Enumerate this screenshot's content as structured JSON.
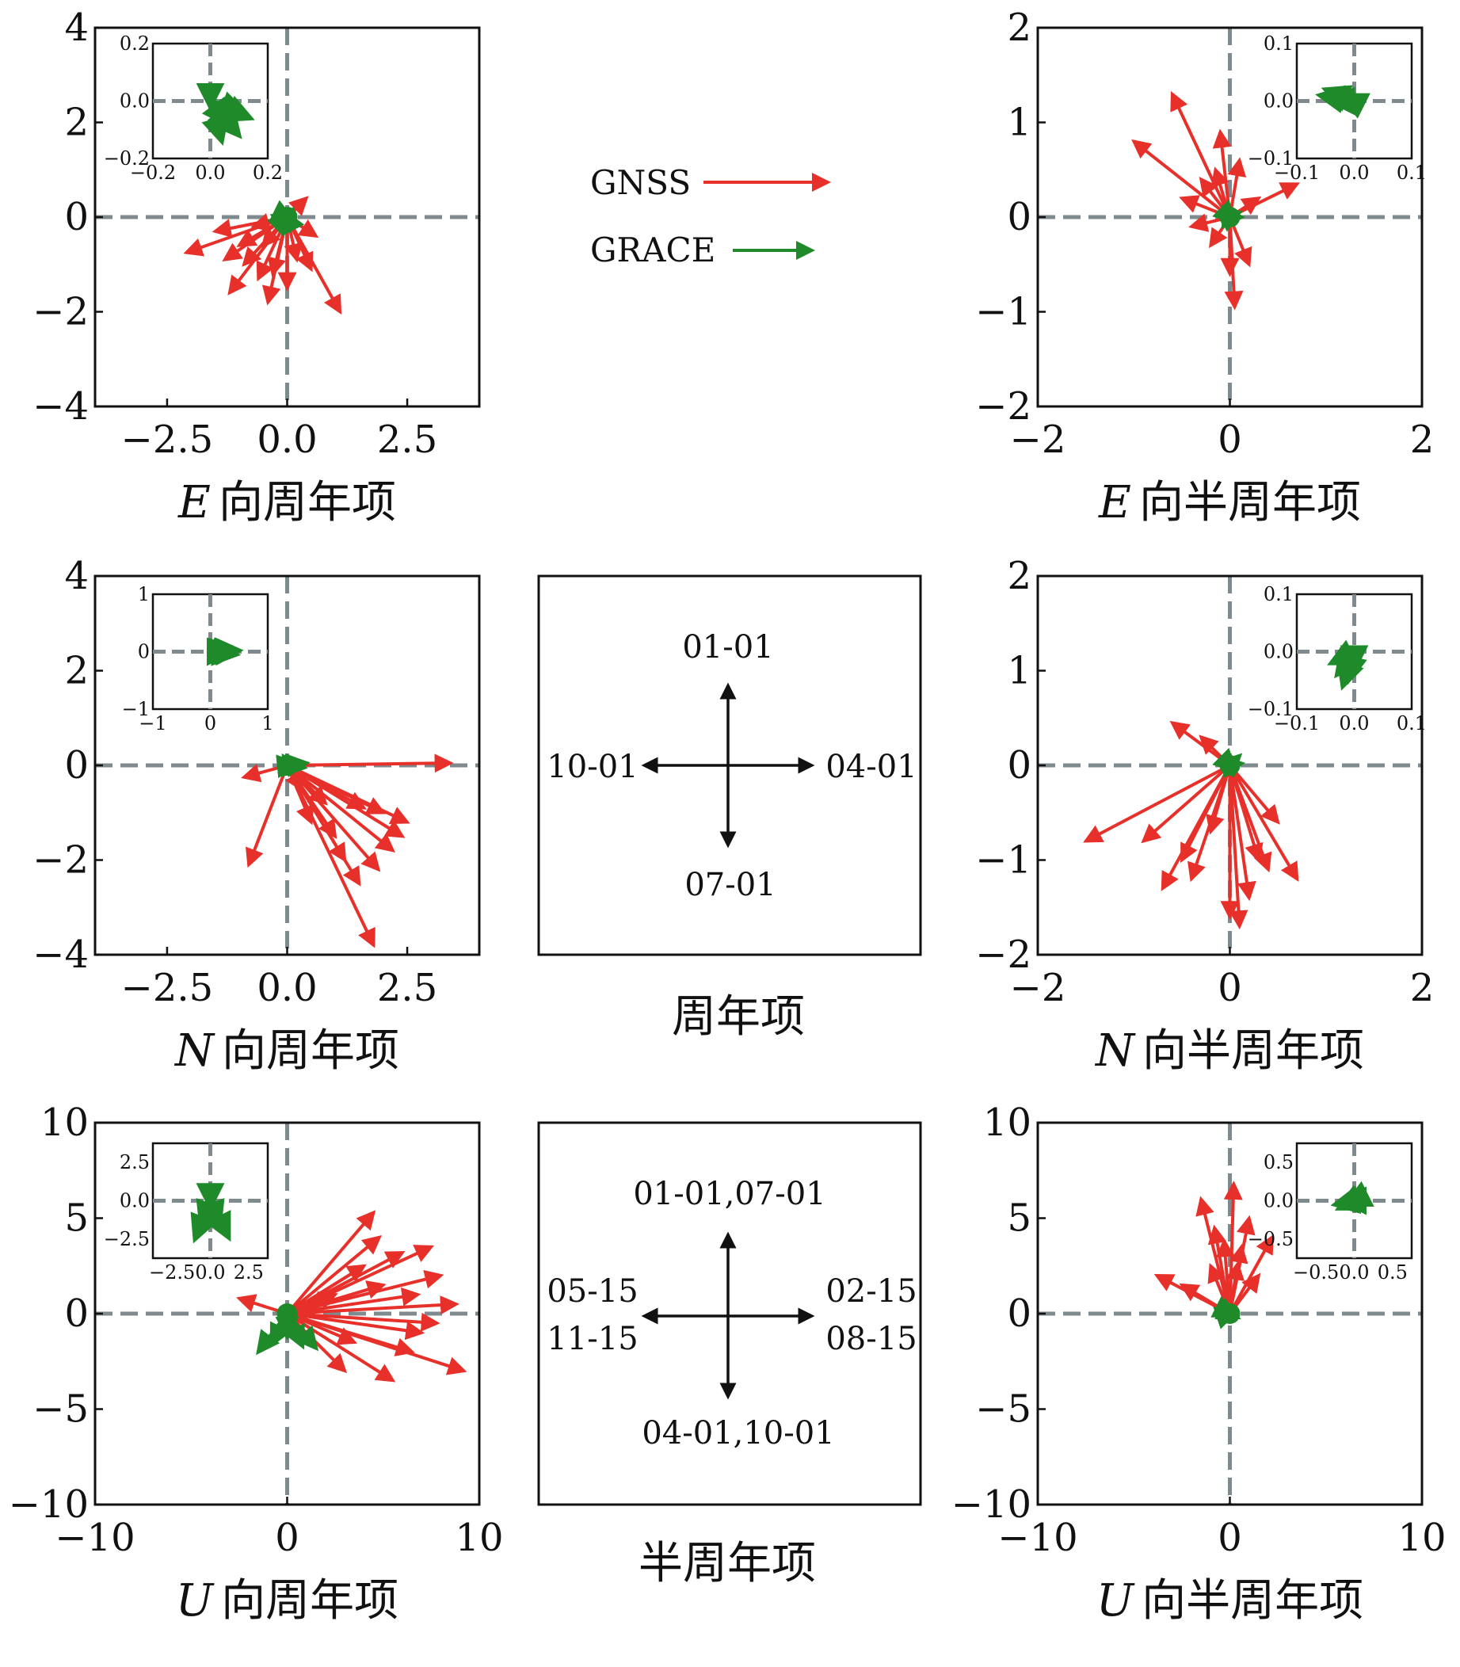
{
  "legend": {
    "gnss_label": "GNSS",
    "grace_label": "GRACE",
    "gnss_color": "#e8302a",
    "grace_color": "#1e8a2a"
  },
  "colors": {
    "gnss": "#e8302a",
    "grace": "#1e8a2a",
    "axes": "#111111",
    "zero_line": "#7f8a8f"
  },
  "annual_key": {
    "caption": "周年项",
    "top": "01-01",
    "right": "04-01",
    "bottom": "07-01",
    "left": "10-01"
  },
  "semiannual_key": {
    "caption": "半周年项",
    "top": "01-01,07-01",
    "right_1": "02-15",
    "right_2": "08-15",
    "bottom": "04-01,10-01",
    "left_1": "05-15",
    "left_2": "11-15"
  },
  "chart_data": [
    {
      "id": "E-annual",
      "type": "scatter",
      "subtype": "phasor-arrows",
      "title_italic": "E",
      "title_rest": "向周年项",
      "xlim": [
        -4,
        4
      ],
      "ylim": [
        -4,
        4
      ],
      "xticks": [
        -2.5,
        0.0,
        2.5
      ],
      "xtick_labels": [
        "−2.5",
        "0.0",
        "2.5"
      ],
      "yticks": [
        -4,
        -2,
        0,
        2,
        4
      ],
      "ytick_labels": [
        "−4",
        "−2",
        "0",
        "2",
        "4"
      ],
      "grid": false,
      "zero_lines": true,
      "gnss_arrows": [
        [
          -2.1,
          -0.75
        ],
        [
          -1.2,
          -1.6
        ],
        [
          -0.4,
          -1.8
        ],
        [
          1.1,
          -2.0
        ],
        [
          -0.9,
          -1.0
        ],
        [
          -1.5,
          -0.3
        ],
        [
          -0.5,
          -0.6
        ],
        [
          0.4,
          0.4
        ],
        [
          0.6,
          -0.4
        ],
        [
          -0.3,
          -1.2
        ],
        [
          0.2,
          -0.9
        ],
        [
          -0.7,
          -0.2
        ],
        [
          -1.0,
          -0.6
        ],
        [
          0.5,
          -1.1
        ],
        [
          -0.2,
          0.1
        ],
        [
          -1.3,
          -0.9
        ],
        [
          0.0,
          -1.5
        ],
        [
          -0.6,
          -1.3
        ]
      ],
      "grace_arrows": [
        [
          0.1,
          0.15
        ],
        [
          0.05,
          0.05
        ],
        [
          -0.05,
          0.1
        ],
        [
          0.1,
          -0.05
        ],
        [
          0.12,
          0.08
        ]
      ],
      "inset": {
        "xlim": [
          -0.2,
          0.2
        ],
        "ylim": [
          -0.2,
          0.2
        ],
        "xtick_labels": [
          "−0.2",
          "0.0",
          "0.2"
        ],
        "ytick_labels": [
          "−0.2",
          "0.0",
          "0.2"
        ],
        "xticks": [
          -0.2,
          0.0,
          0.2
        ],
        "yticks": [
          -0.2,
          0.0,
          0.2
        ],
        "grace_arrows": [
          [
            0.12,
            -0.04
          ],
          [
            0.08,
            -0.1
          ],
          [
            0.04,
            -0.14
          ],
          [
            0.1,
            -0.12
          ],
          [
            0.0,
            -0.02
          ],
          [
            0.14,
            -0.06
          ],
          [
            0.06,
            -0.08
          ]
        ]
      }
    },
    {
      "id": "E-semiannual",
      "type": "scatter",
      "subtype": "phasor-arrows",
      "title_italic": "E",
      "title_rest": "向半周年项",
      "xlim": [
        -2,
        2
      ],
      "ylim": [
        -2,
        2
      ],
      "xticks": [
        -2,
        0,
        2
      ],
      "xtick_labels": [
        "−2",
        "0",
        "2"
      ],
      "yticks": [
        -2,
        -1,
        0,
        1,
        2
      ],
      "ytick_labels": [
        "−2",
        "−1",
        "0",
        "1",
        "2"
      ],
      "grid": false,
      "zero_lines": true,
      "gnss_arrows": [
        [
          -0.6,
          1.3
        ],
        [
          -1.0,
          0.8
        ],
        [
          -0.1,
          0.9
        ],
        [
          0.7,
          0.35
        ],
        [
          0.05,
          -0.95
        ],
        [
          -0.3,
          0.4
        ],
        [
          -0.5,
          0.2
        ],
        [
          0.2,
          -0.5
        ],
        [
          -0.2,
          -0.3
        ],
        [
          0.1,
          0.6
        ],
        [
          -0.4,
          -0.1
        ],
        [
          0.3,
          0.2
        ],
        [
          0.0,
          -0.6
        ],
        [
          -0.15,
          0.5
        ]
      ],
      "grace_arrows": [
        [
          0.1,
          0.05
        ],
        [
          0.05,
          -0.05
        ],
        [
          0.12,
          0.0
        ]
      ],
      "inset": {
        "xlim": [
          -0.1,
          0.1
        ],
        "ylim": [
          -0.1,
          0.1
        ],
        "xtick_labels": [
          "−0.1",
          "0.0",
          "0.1"
        ],
        "ytick_labels": [
          "−0.1",
          "0.0",
          "0.1"
        ],
        "xticks": [
          -0.1,
          0.0,
          0.1
        ],
        "yticks": [
          -0.1,
          0.0,
          0.1
        ],
        "grace_arrows": [
          [
            -0.02,
            0.01
          ],
          [
            -0.05,
            0.02
          ],
          [
            -0.04,
            0.0
          ],
          [
            -0.06,
            0.01
          ]
        ]
      }
    },
    {
      "id": "N-annual",
      "type": "scatter",
      "subtype": "phasor-arrows",
      "title_italic": "N",
      "title_rest": "向周年项",
      "xlim": [
        -4,
        4
      ],
      "ylim": [
        -4,
        4
      ],
      "xticks": [
        -2.5,
        0.0,
        2.5
      ],
      "xtick_labels": [
        "−2.5",
        "0.0",
        "2.5"
      ],
      "yticks": [
        -4,
        -2,
        0,
        2,
        4
      ],
      "ytick_labels": [
        "−4",
        "−2",
        "0",
        "2",
        "4"
      ],
      "grid": false,
      "zero_lines": true,
      "gnss_arrows": [
        [
          3.4,
          0.05
        ],
        [
          -0.9,
          -0.25
        ],
        [
          -0.8,
          -2.1
        ],
        [
          1.8,
          -3.8
        ],
        [
          2.5,
          -1.2
        ],
        [
          2.2,
          -1.8
        ],
        [
          1.5,
          -2.5
        ],
        [
          1.0,
          -1.5
        ],
        [
          2.0,
          -1.0
        ],
        [
          0.8,
          -0.8
        ],
        [
          1.2,
          -2.0
        ],
        [
          2.4,
          -1.5
        ],
        [
          0.5,
          -1.2
        ],
        [
          1.6,
          -0.9
        ],
        [
          0.3,
          -0.5
        ],
        [
          1.9,
          -2.2
        ]
      ],
      "grace_arrows": [
        [
          0.4,
          0.05
        ],
        [
          0.35,
          -0.05
        ],
        [
          0.3,
          0.0
        ],
        [
          0.2,
          0.02
        ]
      ],
      "inset": {
        "xlim": [
          -1,
          1
        ],
        "ylim": [
          -1,
          1
        ],
        "xtick_labels": [
          "−1",
          "0",
          "1"
        ],
        "ytick_labels": [
          "−1",
          "0",
          "1"
        ],
        "xticks": [
          -1,
          0,
          1
        ],
        "yticks": [
          -1,
          0,
          1
        ],
        "grace_arrows": [
          [
            0.5,
            0.02
          ],
          [
            0.45,
            -0.05
          ],
          [
            0.4,
            0.05
          ],
          [
            0.35,
            0.0
          ]
        ]
      }
    },
    {
      "id": "N-semiannual",
      "type": "scatter",
      "subtype": "phasor-arrows",
      "title_italic": "N",
      "title_rest": "向半周年项",
      "xlim": [
        -2,
        2
      ],
      "ylim": [
        -2,
        2
      ],
      "xticks": [
        -2,
        0,
        2
      ],
      "xtick_labels": [
        "−2",
        "0",
        "2"
      ],
      "yticks": [
        -2,
        -1,
        0,
        1,
        2
      ],
      "ytick_labels": [
        "−2",
        "−1",
        "0",
        "1",
        "2"
      ],
      "grid": false,
      "zero_lines": true,
      "gnss_arrows": [
        [
          -1.5,
          -0.8
        ],
        [
          -0.6,
          0.45
        ],
        [
          -0.3,
          0.3
        ],
        [
          0.7,
          -1.2
        ],
        [
          -0.7,
          -1.3
        ],
        [
          0.1,
          -1.7
        ],
        [
          0.3,
          -1.0
        ],
        [
          -0.4,
          -1.2
        ],
        [
          0.5,
          -0.6
        ],
        [
          -0.9,
          -0.8
        ],
        [
          0.2,
          -1.4
        ],
        [
          -0.2,
          -0.7
        ],
        [
          0.4,
          -1.1
        ],
        [
          -0.5,
          -1.0
        ],
        [
          0.0,
          -1.6
        ]
      ],
      "grace_arrows": [
        [
          0.1,
          0.1
        ],
        [
          0.05,
          -0.05
        ],
        [
          0.12,
          0.02
        ]
      ],
      "inset": {
        "xlim": [
          -0.1,
          0.1
        ],
        "ylim": [
          -0.1,
          0.1
        ],
        "xtick_labels": [
          "−0.1",
          "0.0",
          "0.1"
        ],
        "ytick_labels": [
          "−0.1",
          "0.0",
          "0.1"
        ],
        "xticks": [
          -0.1,
          0.0,
          0.1
        ],
        "yticks": [
          -0.1,
          0.0,
          0.1
        ],
        "grace_arrows": [
          [
            -0.01,
            -0.05
          ],
          [
            -0.04,
            -0.02
          ],
          [
            -0.02,
            -0.06
          ],
          [
            0.0,
            -0.03
          ],
          [
            -0.03,
            -0.04
          ]
        ]
      }
    },
    {
      "id": "U-annual",
      "type": "scatter",
      "subtype": "phasor-arrows",
      "title_italic": "U",
      "title_rest": "向周年项",
      "xlim": [
        -10,
        10
      ],
      "ylim": [
        -10,
        10
      ],
      "xticks": [
        -10,
        0,
        10
      ],
      "xtick_labels": [
        "−10",
        "0",
        "10"
      ],
      "yticks": [
        -10,
        -5,
        0,
        5,
        10
      ],
      "ytick_labels": [
        "−10",
        "−5",
        "0",
        "5",
        "10"
      ],
      "grid": false,
      "zero_lines": true,
      "gnss_arrows": [
        [
          -2.5,
          0.8
        ],
        [
          4.5,
          5.3
        ],
        [
          7.5,
          3.5
        ],
        [
          9.2,
          -3.0
        ],
        [
          5.5,
          -3.5
        ],
        [
          3.0,
          -3.0
        ],
        [
          8.8,
          0.5
        ],
        [
          6.0,
          3.2
        ],
        [
          4.0,
          2.5
        ],
        [
          7.0,
          -1.0
        ],
        [
          5.0,
          1.5
        ],
        [
          2.5,
          1.0
        ],
        [
          6.5,
          -2.0
        ],
        [
          8.0,
          2.0
        ],
        [
          3.5,
          -1.5
        ],
        [
          7.8,
          -0.5
        ],
        [
          4.8,
          4.0
        ],
        [
          6.8,
          1.0
        ]
      ],
      "grace_arrows": [
        [
          -1.5,
          -2.0
        ],
        [
          1.5,
          -1.8
        ],
        [
          0.0,
          -1.2
        ],
        [
          -0.8,
          -1.6
        ],
        [
          0.8,
          -1.7
        ]
      ],
      "inset": {
        "xlim": [
          -3.75,
          3.75
        ],
        "ylim": [
          -3.75,
          3.75
        ],
        "xtick_labels": [
          "−2.5",
          "0.0",
          "2.5"
        ],
        "ytick_labels": [
          "−2.5",
          "0.0",
          "2.5"
        ],
        "xticks": [
          -2.5,
          0.0,
          2.5
        ],
        "yticks": [
          -2.5,
          0.0,
          2.5
        ],
        "grace_arrows": [
          [
            -1.0,
            -2.5
          ],
          [
            1.2,
            -2.4
          ],
          [
            0.0,
            -0.4
          ],
          [
            -0.6,
            -1.6
          ],
          [
            0.6,
            -1.6
          ]
        ]
      }
    },
    {
      "id": "U-semiannual",
      "type": "scatter",
      "subtype": "phasor-arrows",
      "title_italic": "U",
      "title_rest": "向半周年项",
      "xlim": [
        -10,
        10
      ],
      "ylim": [
        -10,
        10
      ],
      "xticks": [
        -10,
        0,
        10
      ],
      "xtick_labels": [
        "−10",
        "0",
        "10"
      ],
      "yticks": [
        -10,
        -5,
        0,
        5,
        10
      ],
      "ytick_labels": [
        "−10",
        "−5",
        "0",
        "5",
        "10"
      ],
      "grid": false,
      "zero_lines": true,
      "gnss_arrows": [
        [
          -3.8,
          2.0
        ],
        [
          -1.5,
          6.0
        ],
        [
          0.2,
          6.8
        ],
        [
          2.2,
          4.0
        ],
        [
          1.0,
          5.0
        ],
        [
          -0.8,
          4.5
        ],
        [
          -2.5,
          1.5
        ],
        [
          0.6,
          3.5
        ],
        [
          -1.0,
          2.5
        ],
        [
          1.5,
          2.0
        ],
        [
          -0.3,
          3.8
        ],
        [
          0.4,
          2.6
        ]
      ],
      "grace_arrows": [
        [
          0.4,
          -0.2
        ],
        [
          0.3,
          0.1
        ],
        [
          0.2,
          -0.1
        ]
      ],
      "inset": {
        "xlim": [
          -0.75,
          0.75
        ],
        "ylim": [
          -0.75,
          0.75
        ],
        "xtick_labels": [
          "−0.5",
          "0.0",
          "0.5"
        ],
        "ytick_labels": [
          "−0.5",
          "0.0",
          "0.5"
        ],
        "xticks": [
          -0.5,
          0.0,
          0.5
        ],
        "yticks": [
          -0.5,
          0.0,
          0.5
        ],
        "grace_arrows": [
          [
            -0.1,
            -0.05
          ],
          [
            -0.25,
            -0.05
          ],
          [
            -0.2,
            -0.1
          ],
          [
            -0.15,
            0.0
          ]
        ]
      }
    }
  ]
}
